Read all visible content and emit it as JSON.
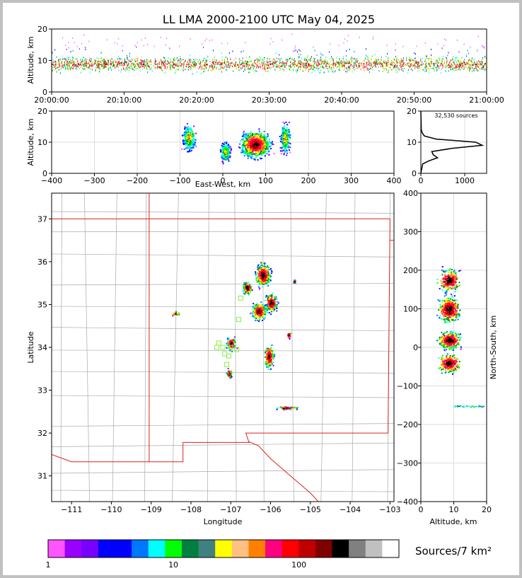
{
  "title": "LL LMA 2000-2100 UTC May 04, 2025",
  "colors": {
    "frame": "#c0c0c0",
    "boundary_red": "#dd2222",
    "county_gray": "#aaaaaa",
    "station_green": "#88ee44"
  },
  "chart_data": [
    {
      "id": "time_altitude",
      "type": "scatter",
      "ylabel": "Altitude, km",
      "ylim": [
        0,
        20
      ],
      "y_ticks": [
        "0",
        "10",
        "20"
      ],
      "x_ticks": [
        "20:00:00",
        "20:10:00",
        "20:20:00",
        "20:30:00",
        "20:40:00",
        "20:50:00",
        "21:00:00"
      ],
      "xlim_minutes": [
        0,
        60
      ],
      "altitude_band_km": [
        4,
        12
      ],
      "peak_altitude_km": 9
    },
    {
      "id": "ew_altitude",
      "type": "scatter",
      "xlabel": "East-West, km",
      "ylabel": "Altitude, km",
      "xlim": [
        -400,
        400
      ],
      "ylim": [
        0,
        20
      ],
      "x_ticks": [
        "−400",
        "−300",
        "−200",
        "−100",
        "0",
        "100",
        "200",
        "300",
        "400"
      ],
      "y_ticks": [
        "0",
        "10",
        "20"
      ],
      "clusters": [
        {
          "x": [
            -100,
            -60
          ],
          "y": [
            6,
            17
          ]
        },
        {
          "x": [
            -10,
            20
          ],
          "y": [
            3,
            11
          ]
        },
        {
          "x": [
            30,
            120
          ],
          "y": [
            4,
            15
          ]
        },
        {
          "x": [
            130,
            160
          ],
          "y": [
            5,
            18
          ]
        }
      ]
    },
    {
      "id": "altitude_histogram",
      "type": "line",
      "annotation": "32,530 sources",
      "xlim": [
        0,
        1500
      ],
      "ylim": [
        0,
        20
      ],
      "x_ticks": [
        "0",
        "1000"
      ],
      "y_ticks": [
        "0",
        "10",
        "20"
      ],
      "profile": [
        {
          "alt": 0,
          "count": 0
        },
        {
          "alt": 3,
          "count": 40
        },
        {
          "alt": 4,
          "count": 180
        },
        {
          "alt": 5,
          "count": 380
        },
        {
          "alt": 6,
          "count": 280
        },
        {
          "alt": 7,
          "count": 250
        },
        {
          "alt": 8,
          "count": 700
        },
        {
          "alt": 9,
          "count": 1400
        },
        {
          "alt": 10,
          "count": 1250
        },
        {
          "alt": 11,
          "count": 350
        },
        {
          "alt": 12,
          "count": 80
        },
        {
          "alt": 13,
          "count": 30
        },
        {
          "alt": 14,
          "count": 10
        },
        {
          "alt": 20,
          "count": 0
        }
      ]
    },
    {
      "id": "plan_view",
      "type": "scatter",
      "xlabel": "Longitude",
      "ylabel": "Latitude",
      "xlim": [
        -111.5,
        -102.9
      ],
      "ylim": [
        30.4,
        37.6
      ],
      "x_ticks": [
        "−111",
        "−110",
        "−109",
        "−108",
        "−107",
        "−106",
        "−105",
        "−104",
        "−103"
      ],
      "y_ticks": [
        "31",
        "32",
        "33",
        "34",
        "35",
        "36",
        "37"
      ],
      "cells": [
        {
          "lon": -106.2,
          "lat": 35.7,
          "w": 0.25,
          "h": 0.35
        },
        {
          "lon": -106.6,
          "lat": 35.4,
          "w": 0.15,
          "h": 0.2
        },
        {
          "lon": -106.0,
          "lat": 35.05,
          "w": 0.2,
          "h": 0.3
        },
        {
          "lon": -106.3,
          "lat": 34.85,
          "w": 0.25,
          "h": 0.25
        },
        {
          "lon": -106.05,
          "lat": 33.8,
          "w": 0.15,
          "h": 0.35
        },
        {
          "lon": -107.0,
          "lat": 34.1,
          "w": 0.15,
          "h": 0.2
        },
        {
          "lon": -107.05,
          "lat": 33.4,
          "w": 0.08,
          "h": 0.15
        },
        {
          "lon": -105.55,
          "lat": 34.3,
          "w": 0.08,
          "h": 0.1
        },
        {
          "lon": -105.6,
          "lat": 32.6,
          "w": 0.35,
          "h": 0.05
        },
        {
          "lon": -108.4,
          "lat": 34.8,
          "w": 0.12,
          "h": 0.06
        },
        {
          "lon": -105.4,
          "lat": 35.55,
          "w": 0.05,
          "h": 0.05
        }
      ],
      "stations": [
        {
          "lon": -106.75,
          "lat": 35.15
        },
        {
          "lon": -106.8,
          "lat": 34.65
        },
        {
          "lon": -107.3,
          "lat": 34.1
        },
        {
          "lon": -107.2,
          "lat": 34.0
        },
        {
          "lon": -107.35,
          "lat": 34.0
        },
        {
          "lon": -107.0,
          "lat": 34.0
        },
        {
          "lon": -106.85,
          "lat": 33.95
        },
        {
          "lon": -107.05,
          "lat": 33.8
        },
        {
          "lon": -107.1,
          "lat": 33.6
        },
        {
          "lon": -107.15,
          "lat": 33.85
        }
      ]
    },
    {
      "id": "ns_altitude",
      "type": "scatter",
      "xlabel": "Altitude, km",
      "ylabel": "North-South, km",
      "xlim": [
        0,
        20
      ],
      "ylim": [
        -400,
        400
      ],
      "x_ticks": [
        "0",
        "10",
        "20"
      ],
      "y_ticks": [
        "−400",
        "−300",
        "−200",
        "−100",
        "0",
        "100",
        "200",
        "300",
        "400"
      ],
      "clusters": [
        {
          "x": [
            3,
            14
          ],
          "y": [
            -80,
            240
          ]
        },
        {
          "x": [
            10,
            19
          ],
          "y": [
            -160,
            -145
          ]
        }
      ]
    }
  ],
  "colorbar": {
    "label": "Sources/7 km²",
    "tick_labels": [
      "1",
      "10",
      "100"
    ],
    "colors": [
      "#ff55ff",
      "#9900ff",
      "#7700ff",
      "#0000ff",
      "#0000ff",
      "#0077ff",
      "#00ffff",
      "#00ff00",
      "#008040",
      "#408080",
      "#ffff00",
      "#ffc080",
      "#ff8000",
      "#ff0080",
      "#ff0000",
      "#c00000",
      "#800000",
      "#000000",
      "#808080",
      "#c0c0c0",
      "#ffffff"
    ]
  }
}
